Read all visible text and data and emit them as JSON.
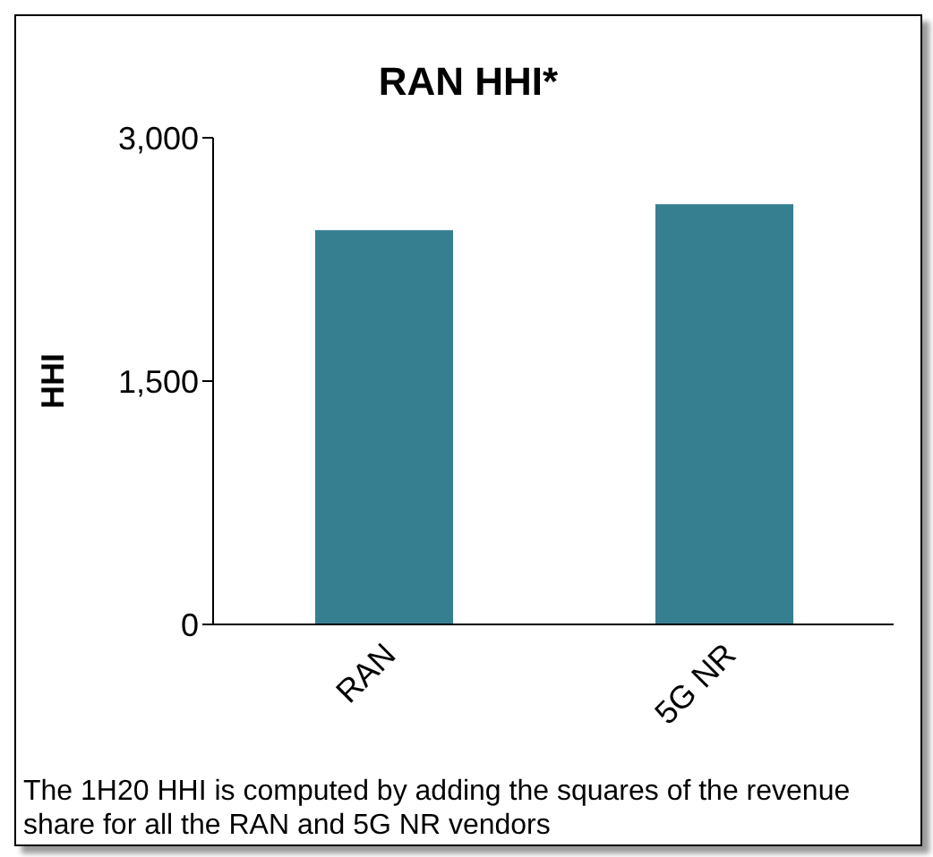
{
  "chart_data": {
    "type": "bar",
    "title": "RAN HHI*",
    "ylabel": "HHI",
    "categories": [
      "RAN",
      "5G NR"
    ],
    "values": [
      2430,
      2590
    ],
    "color": "#367f91",
    "ylim": [
      0,
      3000
    ],
    "yticks": [
      {
        "value": 0,
        "label": "0"
      },
      {
        "value": 1500,
        "label": "1,500"
      },
      {
        "value": 3000,
        "label": "3,000"
      }
    ],
    "grid": false,
    "annotations": [
      "The 1H20 HHI is computed by adding the squares of the revenue share for all the RAN and 5G NR vendors"
    ]
  }
}
